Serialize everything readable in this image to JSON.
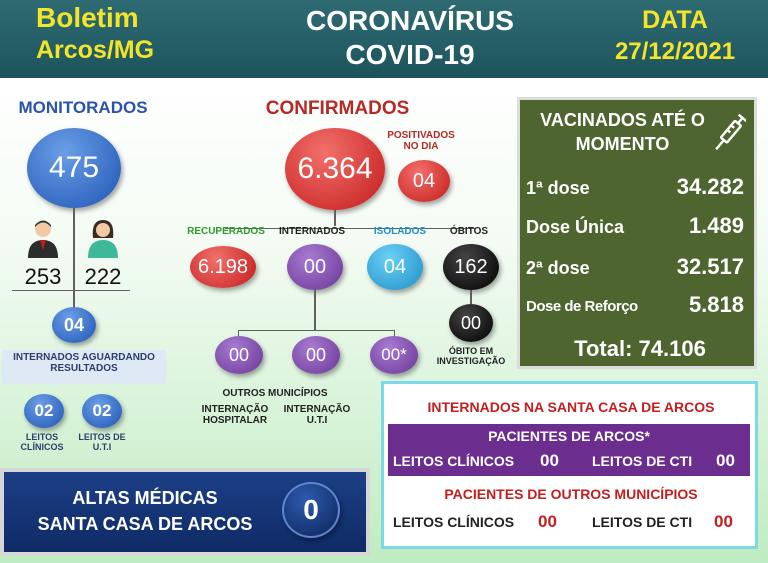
{
  "header": {
    "title_line1": "Boletim",
    "title_line2": "Arcos/MG",
    "center_line1": "CORONAVÍRUS",
    "center_line2": "COVID-19",
    "date_label": "DATA",
    "date_value": "27/12/2021"
  },
  "monitorados": {
    "label": "MONITORADOS",
    "value": "475",
    "men": "253",
    "women": "222",
    "aguardando": "04",
    "aguardando_label": "INTERNADOS AGUARDANDO RESULTADOS",
    "leitos_clinicos": "02",
    "leitos_clinicos_label": "LEITOS CLÍNICOS",
    "leitos_uti": "02",
    "leitos_uti_label": "LEITOS DE U.T.I"
  },
  "confirmados": {
    "label": "CONFIRMADOS",
    "value": "6.364",
    "positivados_label": "POSITIVADOS NO DIA",
    "positivados": "04",
    "recuperados_label": "RECUPERADOS",
    "recuperados": "6.198",
    "internados_label": "INTERNADOS",
    "internados": "00",
    "isolados_label": "ISOLADOS",
    "isolados": "04",
    "obitos_label": "ÓBITOS",
    "obitos": "162",
    "obito_invest": "00",
    "obito_invest_label": "ÓBITO EM INVESTIGAÇÃO",
    "sub1": "00",
    "sub2": "00",
    "sub3": "00*",
    "outros_label": "OUTROS MUNICÍPIOS",
    "int_hosp_label": "INTERNAÇÃO HOSPITALAR",
    "int_uti_label": "INTERNAÇÃO U.T.I"
  },
  "vacinados": {
    "title": "VACINADOS ATÉ O MOMENTO",
    "rows": [
      {
        "label": "1ª dose",
        "value": "34.282"
      },
      {
        "label": "Dose Única",
        "value": "1.489"
      },
      {
        "label": "2ª dose",
        "value": "32.517"
      },
      {
        "label": "Dose de Reforço",
        "value": "5.818"
      }
    ],
    "total": "Total: 74.106"
  },
  "santa_casa": {
    "title": "INTERNADOS NA SANTA CASA DE ARCOS",
    "pacientes_arcos": "PACIENTES DE ARCOS*",
    "arcos_clinicos_label": "LEITOS CLÍNICOS",
    "arcos_clinicos": "00",
    "arcos_cti_label": "LEITOS DE CTI",
    "arcos_cti": "00",
    "pacientes_outros": "PACIENTES DE OUTROS MUNICÍPIOS",
    "outros_clinicos_label": "LEITOS CLÍNICOS",
    "outros_clinicos": "00",
    "outros_cti_label": "LEITOS DE CTI",
    "outros_cti": "00"
  },
  "altas": {
    "line1": "ALTAS MÉDICAS",
    "line2": "SANTA CASA DE ARCOS",
    "value": "0"
  }
}
